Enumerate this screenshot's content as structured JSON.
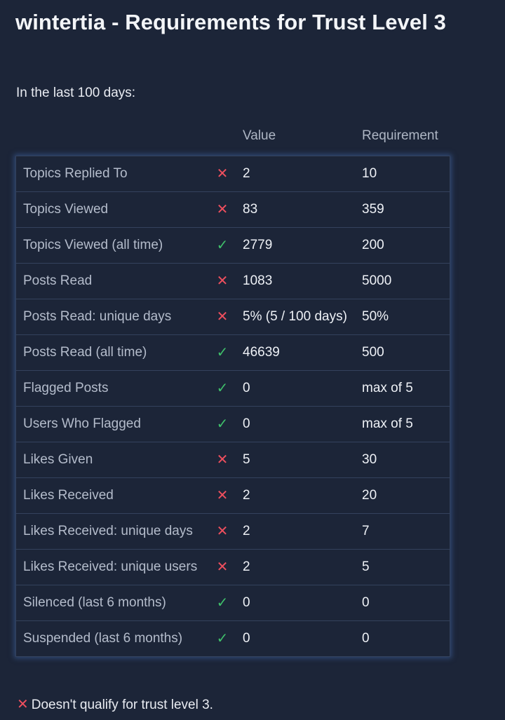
{
  "page": {
    "title": "wintertia - Requirements for Trust Level 3",
    "period_text": "In the last 100 days:"
  },
  "table": {
    "headers": {
      "value": "Value",
      "requirement": "Requirement"
    },
    "rows": [
      {
        "label": "Topics Replied To",
        "status": "fail",
        "icon": "x-icon",
        "value": "2",
        "requirement": "10"
      },
      {
        "label": "Topics Viewed",
        "status": "fail",
        "icon": "x-icon",
        "value": "83",
        "requirement": "359"
      },
      {
        "label": "Topics Viewed (all time)",
        "status": "pass",
        "icon": "check-icon",
        "value": "2779",
        "requirement": "200"
      },
      {
        "label": "Posts Read",
        "status": "fail",
        "icon": "x-icon",
        "value": "1083",
        "requirement": "5000"
      },
      {
        "label": "Posts Read: unique days",
        "status": "fail",
        "icon": "x-icon",
        "value": "5% (5 / 100 days)",
        "requirement": "50%"
      },
      {
        "label": "Posts Read (all time)",
        "status": "pass",
        "icon": "check-icon",
        "value": "46639",
        "requirement": "500"
      },
      {
        "label": "Flagged Posts",
        "status": "pass",
        "icon": "check-icon",
        "value": "0",
        "requirement": "max of 5"
      },
      {
        "label": "Users Who Flagged",
        "status": "pass",
        "icon": "check-icon",
        "value": "0",
        "requirement": "max of 5"
      },
      {
        "label": "Likes Given",
        "status": "fail",
        "icon": "x-icon",
        "value": "5",
        "requirement": "30"
      },
      {
        "label": "Likes Received",
        "status": "fail",
        "icon": "x-icon",
        "value": "2",
        "requirement": "20"
      },
      {
        "label": "Likes Received: unique days",
        "status": "fail",
        "icon": "x-icon",
        "value": "2",
        "requirement": "7"
      },
      {
        "label": "Likes Received: unique users",
        "status": "fail",
        "icon": "x-icon",
        "value": "2",
        "requirement": "5"
      },
      {
        "label": "Silenced (last 6 months)",
        "status": "pass",
        "icon": "check-icon",
        "value": "0",
        "requirement": "0"
      },
      {
        "label": "Suspended (last 6 months)",
        "status": "pass",
        "icon": "check-icon",
        "value": "0",
        "requirement": "0"
      }
    ]
  },
  "verdict": {
    "icon": "x-icon",
    "text": "Doesn't qualify for trust level 3."
  },
  "colors": {
    "background": "#1c2538",
    "fail": "#ee4f5e",
    "pass": "#3fbf6a",
    "row_border": "#34425d",
    "glow": "#4066a8"
  }
}
